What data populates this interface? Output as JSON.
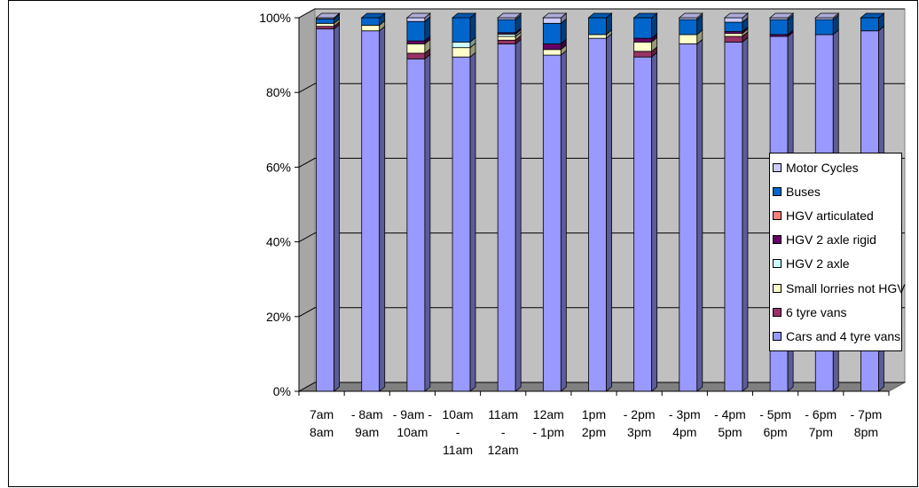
{
  "chart_data": {
    "type": "bar",
    "stacked": true,
    "percent_stacked": true,
    "three_d": true,
    "categories": [
      "7am - 8am",
      "8am - 9am",
      "9am - 10am",
      "10am - 11am",
      "11am - 12am",
      "12am - 1pm",
      "1pm - 2pm",
      "2pm - 3pm",
      "3pm - 4pm",
      "4pm - 5pm",
      "5pm - 6pm",
      "6pm - 7pm",
      "7pm - 8pm"
    ],
    "category_label_lines": [
      [
        "7am",
        "8am"
      ],
      [
        "- 8am",
        "9am"
      ],
      [
        "- 9am -",
        "10am"
      ],
      [
        "10am",
        "-",
        "11am"
      ],
      [
        "11am",
        "-",
        "12am"
      ],
      [
        "12am",
        "- 1pm"
      ],
      [
        "1pm",
        "2pm"
      ],
      [
        "- 2pm",
        "3pm"
      ],
      [
        "- 3pm",
        "4pm"
      ],
      [
        "- 4pm",
        "5pm"
      ],
      [
        "- 5pm",
        "6pm"
      ],
      [
        "- 6pm",
        "7pm"
      ],
      [
        "- 7pm",
        "8pm"
      ]
    ],
    "series": [
      {
        "name": "Cars and  4 tyre vans",
        "color": "#9999ff",
        "values": [
          97,
          96.5,
          89,
          89.5,
          93,
          90,
          94.5,
          89.5,
          93,
          93.5,
          95,
          95.5,
          96.5
        ]
      },
      {
        "name": "6 tyre vans",
        "color": "#993366",
        "values": [
          0.7,
          0,
          1.5,
          0,
          1,
          0,
          0,
          1.5,
          0,
          1.5,
          0,
          0,
          0
        ]
      },
      {
        "name": "Small lorries not HGV",
        "color": "#ffffcc",
        "values": [
          0.8,
          1.5,
          2.5,
          2.5,
          1,
          1.5,
          1,
          2.5,
          2.5,
          0.8,
          0,
          0,
          0
        ]
      },
      {
        "name": "HGV  2 axle",
        "color": "#ccffff",
        "values": [
          0,
          0,
          0,
          1.5,
          0.6,
          0,
          0,
          0,
          0,
          0,
          0,
          0,
          0
        ]
      },
      {
        "name": "HGV 2 axle rigid",
        "color": "#660066",
        "values": [
          0,
          0,
          0.8,
          0,
          0.4,
          1.5,
          0,
          1,
          0,
          0.5,
          0.5,
          0,
          0
        ]
      },
      {
        "name": "HGV articulated",
        "color": "#ff8080",
        "values": [
          0,
          0,
          0,
          0,
          0,
          0,
          0,
          0,
          0,
          0,
          0,
          0,
          0
        ]
      },
      {
        "name": "Buses",
        "color": "#0066cc",
        "values": [
          1.2,
          2,
          5.2,
          6.5,
          3.5,
          5.5,
          4.5,
          5.5,
          4,
          2.5,
          4,
          4,
          3.5
        ]
      },
      {
        "name": "Motor Cycles",
        "color": "#ccccff",
        "values": [
          0.3,
          0,
          1,
          0,
          0.5,
          1.5,
          0,
          0,
          0.5,
          1.2,
          0.5,
          0.5,
          0
        ]
      }
    ],
    "y_ticks": [
      "0%",
      "20%",
      "40%",
      "60%",
      "80%",
      "100%"
    ],
    "ylim": [
      0,
      100
    ],
    "grid": true,
    "legend_position": "right",
    "plot_wall_color": "#c0c0c0",
    "floor_color": "#808080"
  }
}
